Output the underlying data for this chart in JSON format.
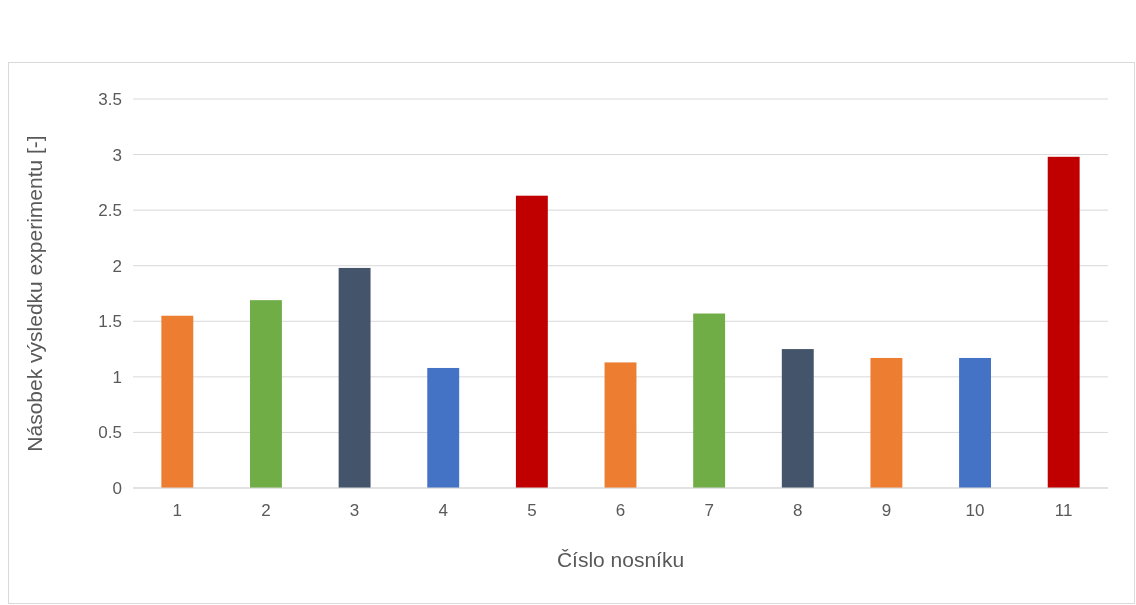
{
  "chart_data": {
    "type": "bar",
    "xlabel": "Číslo nosníku",
    "ylabel": "Násobek výsledku experimentu [-]",
    "categories": [
      "1",
      "2",
      "3",
      "4",
      "5",
      "6",
      "7",
      "8",
      "9",
      "10",
      "11"
    ],
    "values": [
      1.55,
      1.69,
      1.98,
      1.08,
      2.63,
      1.13,
      1.57,
      1.25,
      1.17,
      1.17,
      2.98
    ],
    "colors": [
      "#ed7d31",
      "#70ad47",
      "#44546a",
      "#4472c4",
      "#c00000",
      "#ed7d31",
      "#70ad47",
      "#44546a",
      "#ed7d31",
      "#4472c4",
      "#c00000"
    ],
    "ylim": [
      0,
      3.5
    ],
    "yticks": [
      0,
      0.5,
      1,
      1.5,
      2,
      2.5,
      3,
      3.5
    ],
    "grid": "y"
  }
}
